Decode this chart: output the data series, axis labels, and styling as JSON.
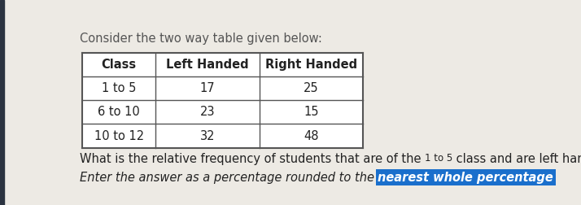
{
  "title": "Consider the two way table given below:",
  "headers": [
    "Class",
    "Left Handed",
    "Right Handed"
  ],
  "rows": [
    [
      "1 to 5",
      "17",
      "25"
    ],
    [
      "6 to 10",
      "23",
      "15"
    ],
    [
      "10 to 12",
      "32",
      "48"
    ]
  ],
  "question_line1_pre": "What is the relative frequency of students that are of the ",
  "question_line1_sub": "1 to 5",
  "question_line1_post": " class and are left handed?",
  "question_line2_prefix": "Enter the answer as a percentage rounded to the ",
  "question_line2_highlight": "nearest whole percentage",
  "bg_color": "#edeae4",
  "table_bg": "#ffffff",
  "border_color": "#555555",
  "text_color": "#222222",
  "title_color": "#555555",
  "highlight_bg": "#1a6fcc",
  "highlight_text": "#ffffff",
  "left_bar_color": "#2b3340",
  "font_size_title": 10.5,
  "font_size_table": 10.5,
  "font_size_question": 10.5,
  "font_size_sub": 8.5
}
